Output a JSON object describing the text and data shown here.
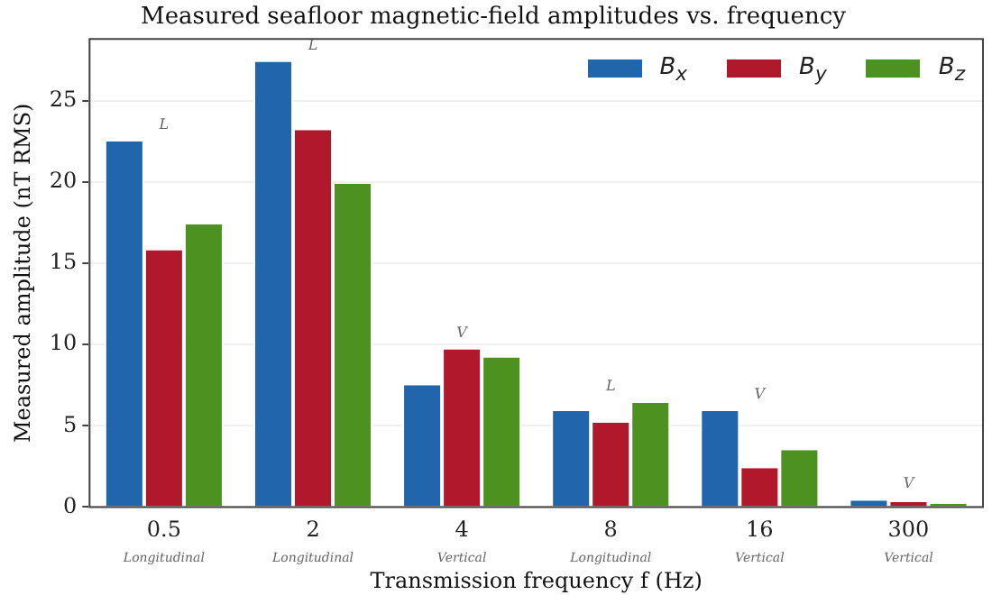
{
  "chart_data": {
    "type": "bar",
    "title": "Measured seafloor magnetic-field amplitudes vs. frequency",
    "xlabel": "Transmission frequency f (Hz)",
    "ylabel": "Measured amplitude (nT RMS)",
    "categories": [
      "0.5",
      "2",
      "4",
      "8",
      "16",
      "300"
    ],
    "series": [
      {
        "name": "B$_{x}$",
        "color": "#2166ac",
        "values": [
          22.5,
          27.4,
          7.5,
          5.9,
          5.9,
          0.4
        ]
      },
      {
        "name": "B$_{y}$",
        "color": "#b2182b",
        "values": [
          15.8,
          23.2,
          9.7,
          5.2,
          2.4,
          0.3
        ]
      },
      {
        "name": "B$_{z}$",
        "color": "#4d9221",
        "values": [
          17.4,
          19.9,
          9.2,
          6.4,
          3.5,
          0.2
        ]
      }
    ],
    "ylim": [
      0,
      28.8
    ],
    "yticks": [
      0,
      5,
      10,
      15,
      20,
      25
    ],
    "grid": "y",
    "legend": "top right",
    "annotations": [
      "L",
      "L",
      "V",
      "L",
      "V",
      "V",
      "Longitudinal",
      "Longitudinal",
      "Vertical",
      "Longitudinal",
      "Vertical",
      "Vertical"
    ]
  }
}
